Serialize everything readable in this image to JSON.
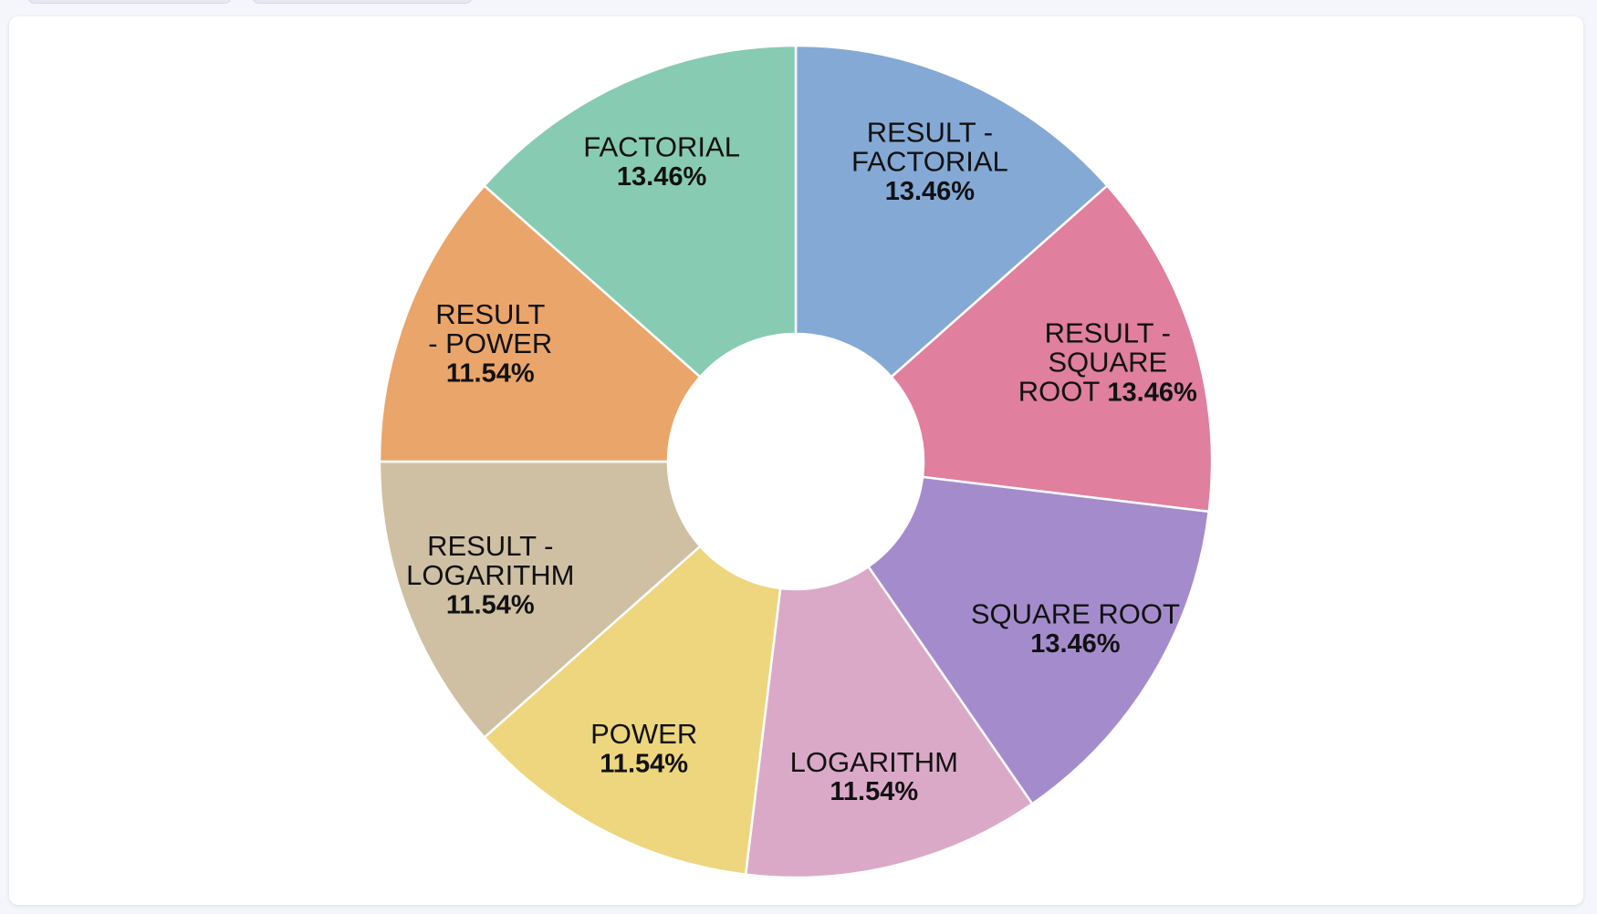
{
  "chart_data": {
    "type": "pie",
    "donut": true,
    "title": "",
    "categories": [
      "RESULT - FACTORIAL",
      "RESULT - SQUARE ROOT",
      "SQUARE ROOT",
      "LOGARITHM",
      "POWER",
      "RESULT - LOGARITHM",
      "RESULT - POWER",
      "FACTORIAL"
    ],
    "values": [
      13.46,
      13.46,
      13.46,
      11.54,
      11.54,
      11.54,
      11.54,
      13.46
    ],
    "colors": [
      "#84a9d5",
      "#e07f9e",
      "#a48ccc",
      "#dba9c8",
      "#edd67d",
      "#cfc0a3",
      "#eaa56a",
      "#87cbb3"
    ],
    "slices": [
      {
        "name": "RESULT - FACTORIAL",
        "value": 13.46,
        "label_lines": [
          "RESULT -",
          "FACTORIAL"
        ],
        "pct_text": "13.46%",
        "pct_inline": false
      },
      {
        "name": "RESULT - SQUARE ROOT",
        "value": 13.46,
        "label_lines": [
          "RESULT -",
          "SQUARE",
          "ROOT"
        ],
        "pct_text": "13.46%",
        "pct_inline": true
      },
      {
        "name": "SQUARE ROOT",
        "value": 13.46,
        "label_lines": [
          "SQUARE ROOT"
        ],
        "pct_text": "13.46%",
        "pct_inline": false
      },
      {
        "name": "LOGARITHM",
        "value": 11.54,
        "label_lines": [
          "LOGARITHM"
        ],
        "pct_text": "11.54%",
        "pct_inline": false
      },
      {
        "name": "POWER",
        "value": 11.54,
        "label_lines": [
          "POWER"
        ],
        "pct_text": "11.54%",
        "pct_inline": false
      },
      {
        "name": "RESULT - LOGARITHM",
        "value": 11.54,
        "label_lines": [
          "RESULT -",
          "LOGARITHM"
        ],
        "pct_text": "11.54%",
        "pct_inline": false
      },
      {
        "name": "RESULT - POWER",
        "value": 11.54,
        "label_lines": [
          "RESULT",
          "- POWER"
        ],
        "pct_text": "11.54%",
        "pct_inline": false
      },
      {
        "name": "FACTORIAL",
        "value": 13.46,
        "label_lines": [
          "FACTORIAL"
        ],
        "pct_text": "13.46%",
        "pct_inline": false
      }
    ],
    "legend": "none",
    "start_angle_deg": 0,
    "direction": "clockwise"
  }
}
